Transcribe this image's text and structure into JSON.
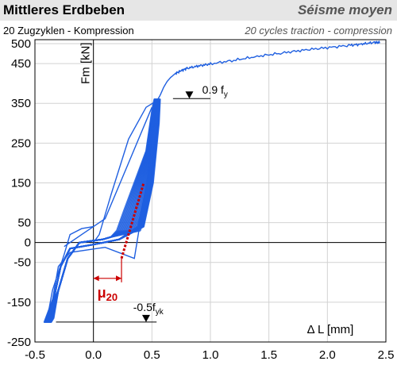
{
  "header": {
    "title_de": "Mittleres Erdbeben",
    "title_fr": "Séisme moyen",
    "subtitle_de": "20 Zugzyklen - Kompression",
    "subtitle_fr": "20 cycles traction - compression"
  },
  "colors": {
    "curve": "#1f5fe0",
    "annotation": "#cc0000",
    "header_bg": "#e6e6e6"
  },
  "chart_data": {
    "type": "line",
    "xlabel": "Δ L [mm]",
    "ylabel": "Fm [kN]",
    "xlim": [
      -0.5,
      2.5
    ],
    "ylim": [
      -250,
      510
    ],
    "x_ticks": [
      "-0.5",
      "0.0",
      "0.5",
      "1.0",
      "1.5",
      "2.0",
      "2.5"
    ],
    "y_ticks": [
      "500",
      "450",
      "350",
      "250",
      "150",
      "50",
      "0",
      "-50",
      "-150",
      "-250"
    ],
    "grid": true,
    "series": [
      {
        "role": "final-tension-envelope",
        "x": [
          0.55,
          0.57,
          0.6,
          0.63,
          0.66,
          0.7,
          0.75,
          0.8,
          0.9,
          1.0,
          1.2,
          1.4,
          1.6,
          1.8,
          2.0,
          2.2,
          2.3,
          2.4,
          2.45
        ],
        "y": [
          360,
          370,
          390,
          405,
          415,
          425,
          432,
          438,
          444,
          449,
          458,
          468,
          476,
          484,
          490,
          496,
          499,
          503,
          503
        ]
      }
    ],
    "annotations": {
      "yield_label": "0.9 f",
      "yield_sub": "y",
      "yield_level": 362,
      "compression_label": "-0.5f",
      "compression_sub": "yk",
      "compression_level": -200,
      "ductility_label": "μ",
      "ductility_sub": "20",
      "ductility_span": [
        0.0,
        0.24
      ],
      "tangent_line": [
        [
          0.24,
          -40
        ],
        [
          0.43,
          150
        ]
      ]
    }
  }
}
